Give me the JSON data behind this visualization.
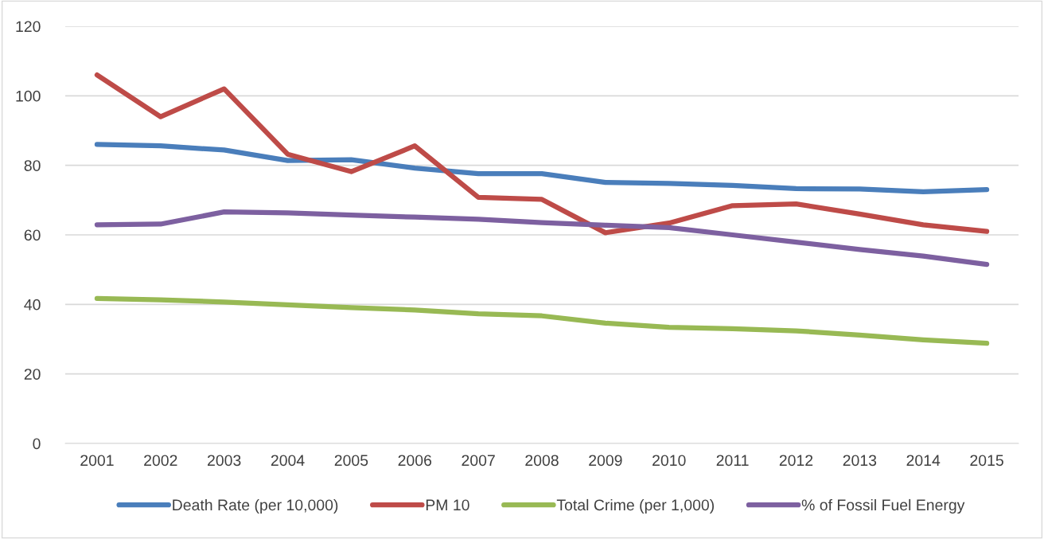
{
  "chart_data": {
    "type": "line",
    "categories": [
      "2001",
      "2002",
      "2003",
      "2004",
      "2005",
      "2006",
      "2007",
      "2008",
      "2009",
      "2010",
      "2011",
      "2012",
      "2013",
      "2014",
      "2015"
    ],
    "series": [
      {
        "name": "Death Rate (per 10,000)",
        "color": "#4a7ebb",
        "values": [
          86,
          85.6,
          84.4,
          81.4,
          81.6,
          79.2,
          77.6,
          77.6,
          75.1,
          74.8,
          74.2,
          73.3,
          73.2,
          72.4,
          73.0
        ]
      },
      {
        "name": "PM 10",
        "color": "#be4b48",
        "values": [
          106,
          94,
          102,
          83.2,
          78.2,
          85.6,
          70.8,
          70.2,
          60.6,
          63.4,
          68.4,
          68.9,
          66,
          62.9,
          61
        ]
      },
      {
        "name": "Total Crime (per 1,000)",
        "color": "#98b954",
        "values": [
          41.7,
          41.3,
          40.7,
          39.9,
          39.1,
          38.4,
          37.3,
          36.7,
          34.6,
          33.4,
          33,
          32.4,
          31.2,
          29.8,
          28.8
        ]
      },
      {
        "name": "% of Fossil Fuel Energy",
        "color": "#7d60a0",
        "values": [
          62.9,
          63.1,
          66.6,
          66.3,
          65.7,
          65.1,
          64.5,
          63.5,
          62.8,
          62.1,
          60,
          57.9,
          55.8,
          53.9,
          51.5
        ]
      }
    ],
    "ylim": [
      0,
      120
    ],
    "yticks": [
      0,
      20,
      40,
      60,
      80,
      100,
      120
    ],
    "grid": "y",
    "legend": "bottom",
    "marker": "none",
    "line_style": "solid"
  }
}
